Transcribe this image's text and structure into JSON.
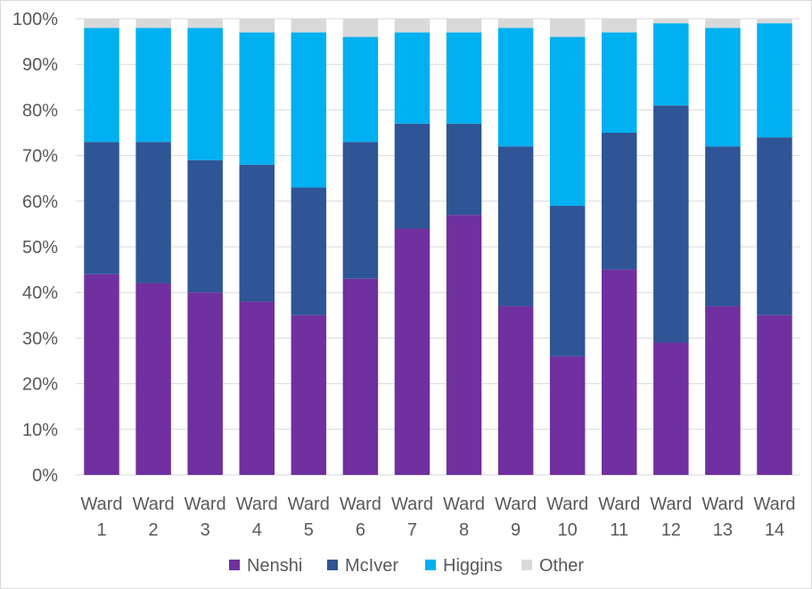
{
  "chart_data": {
    "type": "bar",
    "stacked": true,
    "percent_stacked": true,
    "title": "",
    "xlabel": "",
    "ylabel": "",
    "categories": [
      "Ward 1",
      "Ward 2",
      "Ward 3",
      "Ward 4",
      "Ward 5",
      "Ward 6",
      "Ward 7",
      "Ward 8",
      "Ward 9",
      "Ward 10",
      "Ward 11",
      "Ward 12",
      "Ward 13",
      "Ward 14"
    ],
    "series": [
      {
        "name": "Nenshi",
        "color": "#7030a0",
        "values": [
          44,
          42,
          40,
          38,
          35,
          43,
          54,
          57,
          37,
          26,
          45,
          29,
          37,
          35
        ]
      },
      {
        "name": "McIver",
        "color": "#2f5597",
        "values": [
          29,
          31,
          29,
          30,
          28,
          30,
          23,
          20,
          35,
          33,
          30,
          52,
          35,
          39
        ]
      },
      {
        "name": "Higgins",
        "color": "#00b0f0",
        "values": [
          25,
          25,
          29,
          29,
          34,
          23,
          20,
          20,
          26,
          37,
          22,
          18,
          26,
          25
        ]
      },
      {
        "name": "Other",
        "color": "#d9d9d9",
        "values": [
          2,
          2,
          2,
          3,
          3,
          4,
          3,
          3,
          2,
          4,
          3,
          1,
          2,
          1
        ]
      }
    ],
    "ylim": [
      0,
      100
    ],
    "yticks": [
      "0%",
      "10%",
      "20%",
      "30%",
      "40%",
      "50%",
      "60%",
      "70%",
      "80%",
      "90%",
      "100%"
    ],
    "grid": true,
    "legend_position": "bottom"
  }
}
